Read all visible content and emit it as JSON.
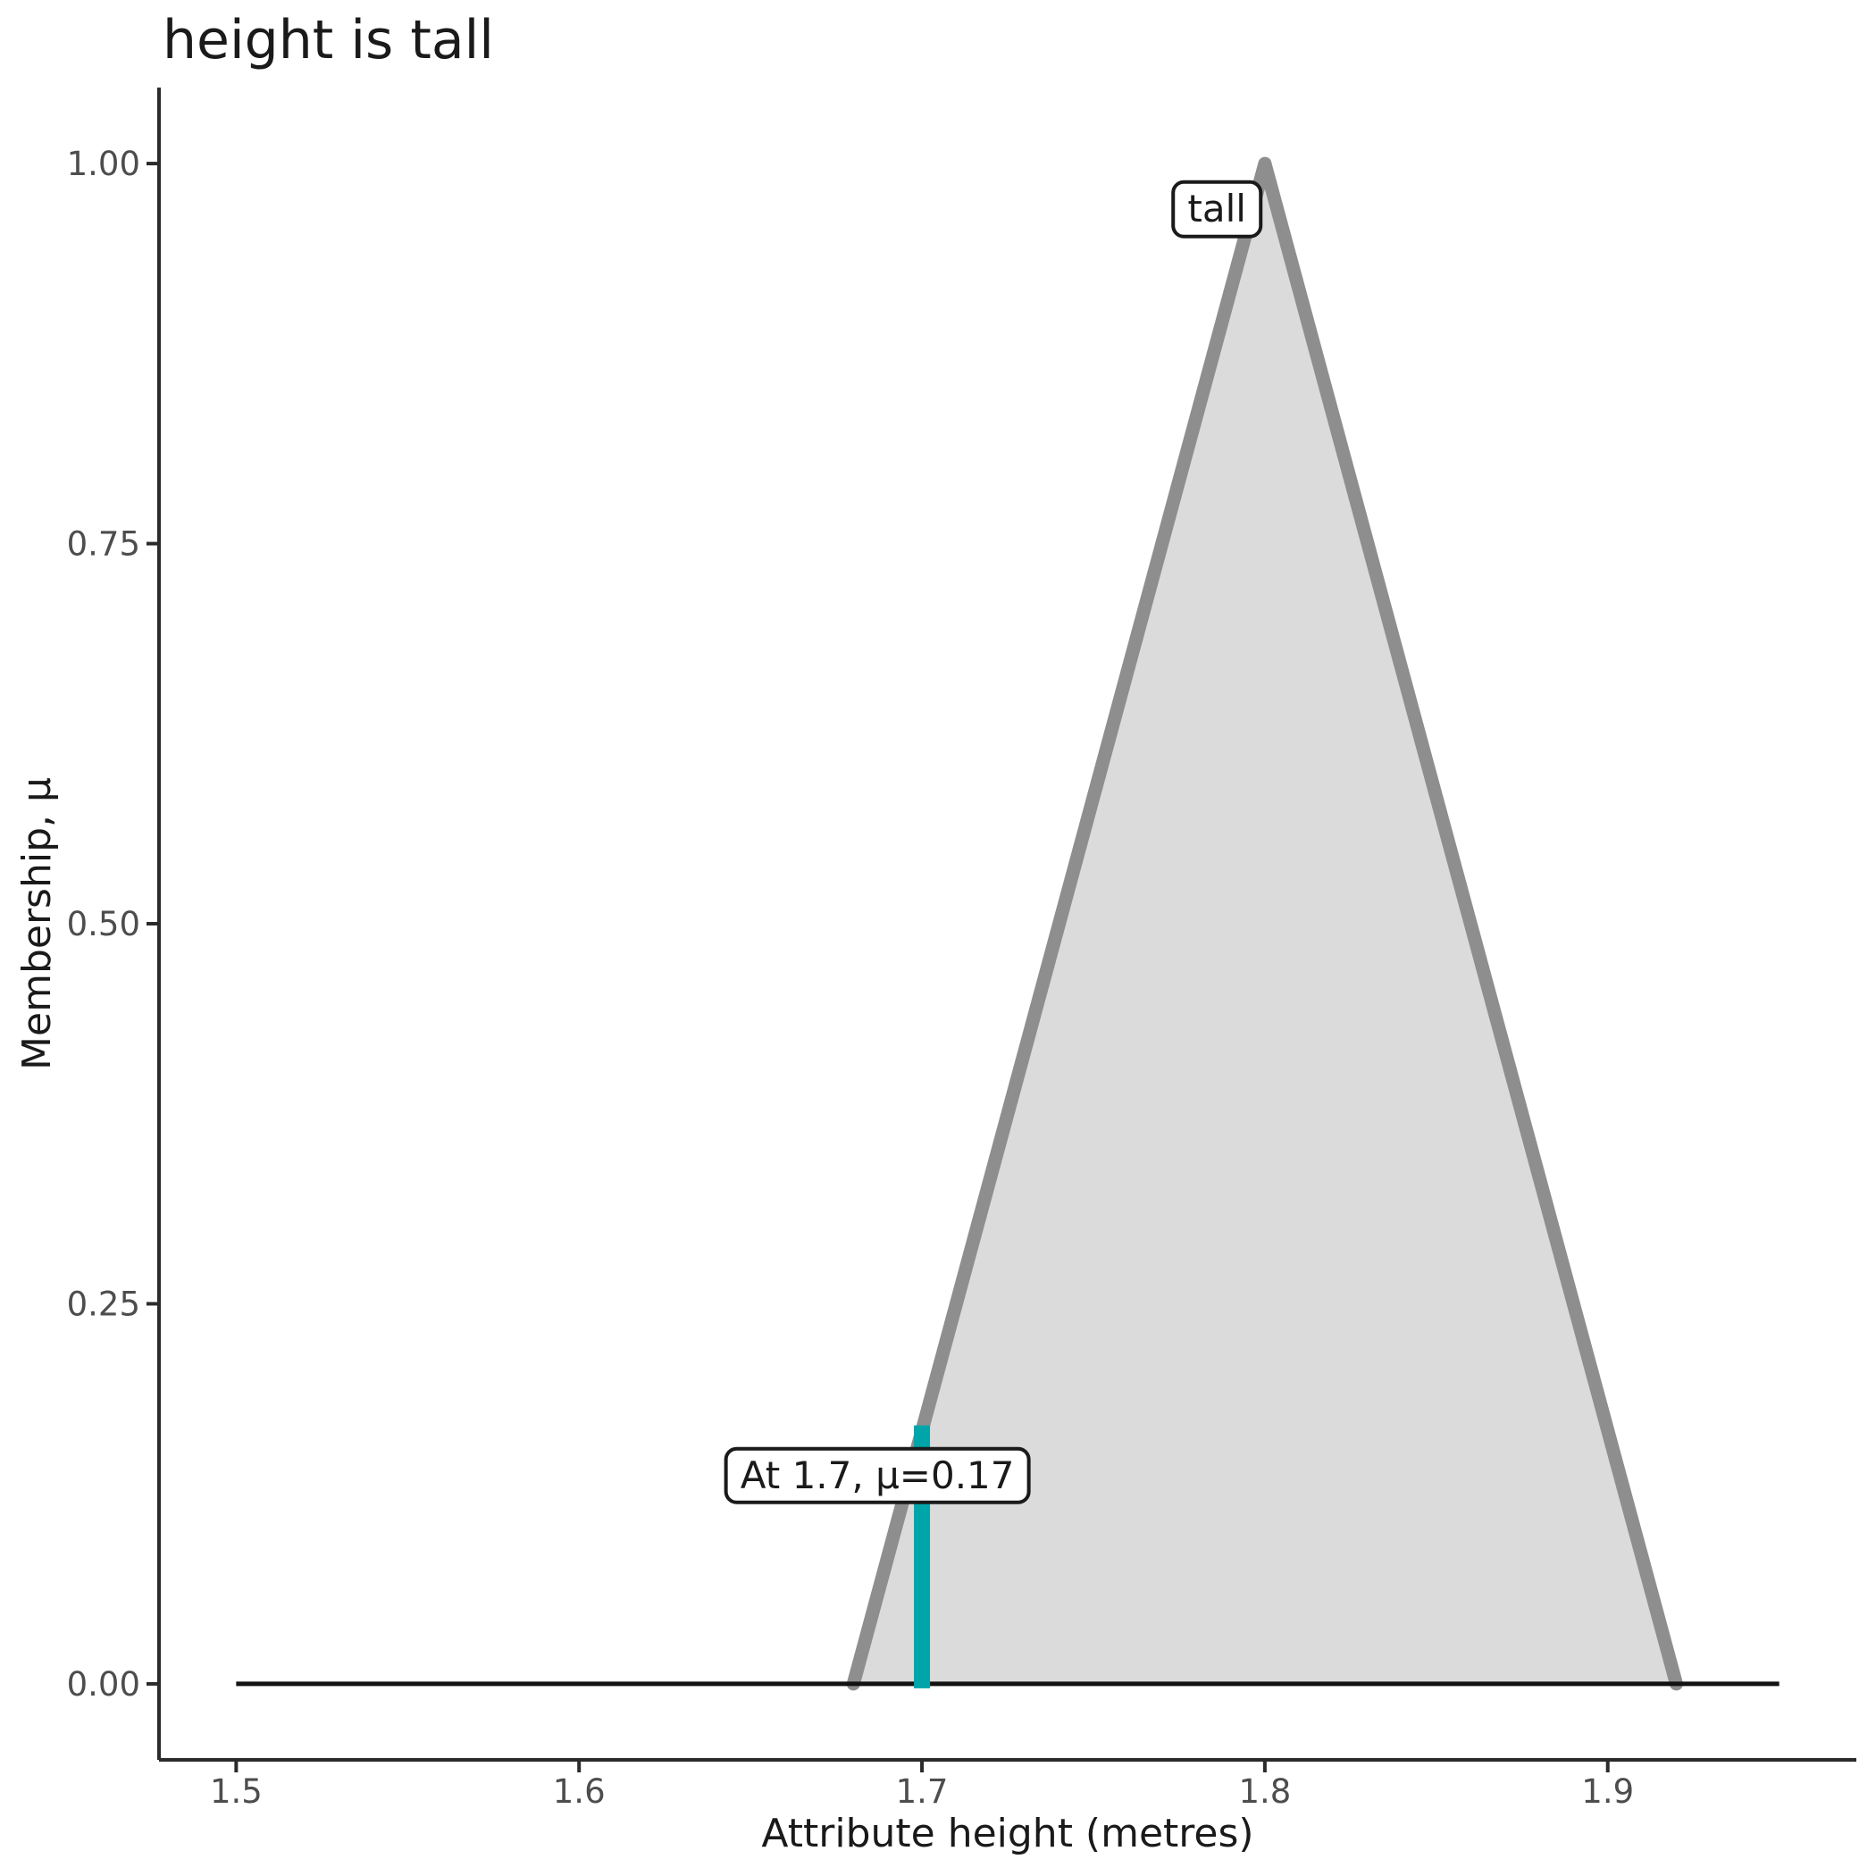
{
  "title": "height is tall",
  "axes": {
    "x": {
      "title": "Attribute height (metres)",
      "ticks": [
        {
          "label": "1.5",
          "value": 1.5
        },
        {
          "label": "1.6",
          "value": 1.6
        },
        {
          "label": "1.7",
          "value": 1.7
        },
        {
          "label": "1.8",
          "value": 1.8
        },
        {
          "label": "1.9",
          "value": 1.9
        }
      ]
    },
    "y": {
      "title": "Membership, μ",
      "ticks": [
        {
          "label": "0.00",
          "value": 0.0
        },
        {
          "label": "0.25",
          "value": 0.25
        },
        {
          "label": "0.50",
          "value": 0.5
        },
        {
          "label": "0.75",
          "value": 0.75
        },
        {
          "label": "1.00",
          "value": 1.0
        }
      ]
    }
  },
  "colors": {
    "background": "#FFFFFF",
    "title_text": "#1A1A1A",
    "axis_title_text": "#1A1A1A",
    "tick_label_text": "#4D4D4D",
    "axis_line": "#2B2B2B",
    "baseline": "#121212",
    "set_fill": "#DBDBDB",
    "set_edge": "#8E8E8E",
    "highlight": "#00A5AA",
    "annotation_border": "#1A1A1A",
    "annotation_bg": "#FFFFFF"
  },
  "chart_data": {
    "type": "area",
    "title": "height is tall",
    "xlabel": "Attribute height (metres)",
    "ylabel": "Membership, μ",
    "xlim": [
      1.5,
      1.95
    ],
    "ylim": [
      0,
      1
    ],
    "x_ticks": [
      1.5,
      1.6,
      1.7,
      1.8,
      1.9
    ],
    "y_ticks": [
      0.0,
      0.25,
      0.5,
      0.75,
      1.0
    ],
    "grid": false,
    "legend": "none",
    "series": [
      {
        "name": "tall membership function",
        "x": [
          1.5,
          1.68,
          1.8,
          1.92,
          1.95
        ],
        "y": [
          0,
          0,
          1,
          0,
          0
        ]
      }
    ],
    "triangle": {
      "left_base": 1.68,
      "peak": 1.8,
      "right_base": 1.92
    },
    "highlight": {
      "x": 1.7,
      "mu": 0.17
    },
    "annotations": [
      {
        "text": "tall",
        "x": 1.786,
        "y": 0.97
      },
      {
        "text": "At 1.7, μ=0.17",
        "x": 1.687,
        "y": 0.137
      }
    ]
  }
}
